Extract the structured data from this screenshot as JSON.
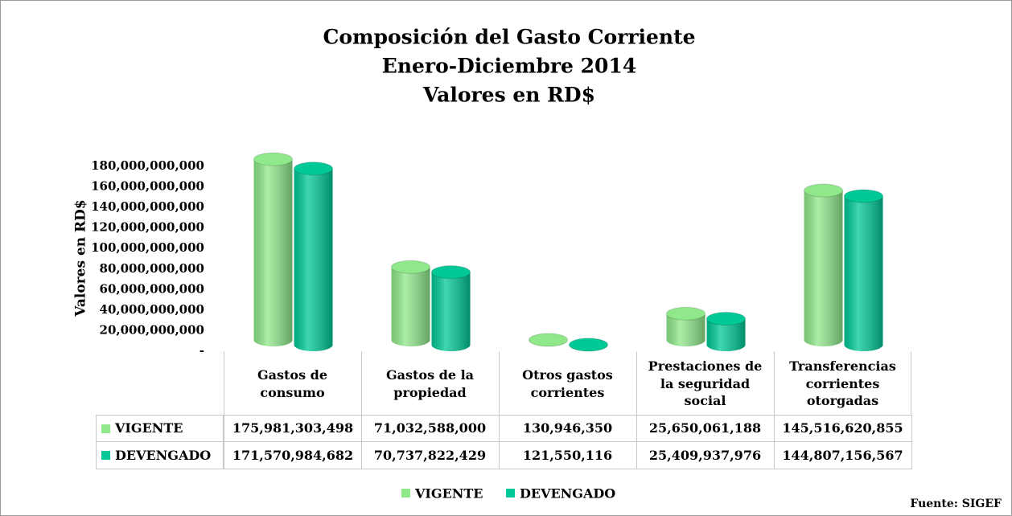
{
  "chart_data": {
    "type": "bar",
    "title": [
      "Composición del Gasto Corriente",
      "Enero-Diciembre 2014",
      "Valores en RD$"
    ],
    "y_label": "Valores en RD$",
    "categories": [
      "Gastos de consumo",
      "Gastos de la propiedad",
      "Otros gastos corrientes",
      "Prestaciones de la seguridad social",
      "Transferencias corrientes otorgadas"
    ],
    "series": [
      {
        "name": "VIGENTE",
        "color": "#8fe88a",
        "values": [
          175981303498,
          71032588000,
          130946350,
          25650061188,
          145516620855
        ],
        "value_labels": [
          "175,981,303,498",
          "71,032,588,000",
          "130,946,350",
          "25,650,061,188",
          "145,516,620,855"
        ]
      },
      {
        "name": "DEVENGADO",
        "color": "#00c896",
        "values": [
          171570984682,
          70737822429,
          121550116,
          25409937976,
          144807156567
        ],
        "value_labels": [
          "171,570,984,682",
          "70,737,822,429",
          "121,550,116",
          "25,409,937,976",
          "144,807,156,567"
        ]
      }
    ],
    "ylim": [
      0,
      180000000000
    ],
    "yticks": [
      {
        "value": 0,
        "label": "-"
      },
      {
        "value": 20000000000,
        "label": "20,000,000,000"
      },
      {
        "value": 40000000000,
        "label": "40,000,000,000"
      },
      {
        "value": 60000000000,
        "label": "60,000,000,000"
      },
      {
        "value": 80000000000,
        "label": "80,000,000,000"
      },
      {
        "value": 100000000000,
        "label": "100,000,000,000"
      },
      {
        "value": 120000000000,
        "label": "120,000,000,000"
      },
      {
        "value": 140000000000,
        "label": "140,000,000,000"
      },
      {
        "value": 160000000000,
        "label": "160,000,000,000"
      },
      {
        "value": 180000000000,
        "label": "180,000,000,000"
      }
    ],
    "legend": "bottom",
    "source": "Fuente: SIGEF"
  }
}
